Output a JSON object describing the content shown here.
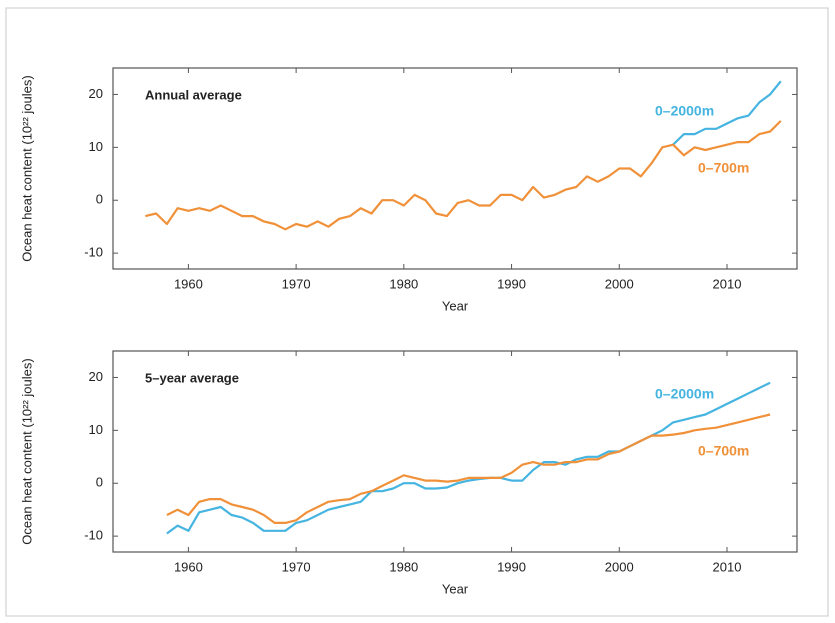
{
  "chart_data": [
    {
      "type": "line",
      "label": "Annual average",
      "xlabel": "Year",
      "ylabel": "Ocean heat content (10²² joules)",
      "x": [
        1956,
        1957,
        1958,
        1959,
        1960,
        1961,
        1962,
        1963,
        1964,
        1965,
        1966,
        1967,
        1968,
        1969,
        1970,
        1971,
        1972,
        1973,
        1974,
        1975,
        1976,
        1977,
        1978,
        1979,
        1980,
        1981,
        1982,
        1983,
        1984,
        1985,
        1986,
        1987,
        1988,
        1989,
        1990,
        1991,
        1992,
        1993,
        1994,
        1995,
        1996,
        1997,
        1998,
        1999,
        2000,
        2001,
        2002,
        2003,
        2004,
        2005,
        2006,
        2007,
        2008,
        2009,
        2010,
        2011,
        2012,
        2013,
        2014,
        2015
      ],
      "series": [
        {
          "name": "0–2000m",
          "color": "#45b4e0",
          "values": [
            null,
            null,
            null,
            null,
            null,
            null,
            null,
            null,
            null,
            null,
            null,
            null,
            null,
            null,
            null,
            null,
            null,
            null,
            null,
            null,
            null,
            null,
            null,
            null,
            null,
            null,
            null,
            null,
            null,
            null,
            null,
            null,
            null,
            null,
            null,
            null,
            null,
            null,
            null,
            null,
            null,
            null,
            null,
            null,
            null,
            null,
            null,
            null,
            null,
            10.5,
            12.5,
            12.5,
            13.5,
            13.5,
            14.5,
            15.5,
            16,
            18.5,
            20,
            22.5
          ]
        },
        {
          "name": "0–700m",
          "color": "#f0913a",
          "values": [
            -3,
            -2.5,
            -4.5,
            -1.5,
            -2,
            -1.5,
            -2,
            -1,
            -2,
            -3,
            -3,
            -4,
            -4.5,
            -5.5,
            -4.5,
            -5,
            -4,
            -5,
            -3.5,
            -3,
            -1.5,
            -2.5,
            0,
            0,
            -1,
            1,
            0,
            -2.5,
            -3,
            -0.5,
            0,
            -1,
            -1,
            1,
            1,
            0,
            2.5,
            0.5,
            1,
            2,
            2.5,
            4.5,
            3.5,
            4.5,
            6,
            6,
            4.5,
            7,
            10,
            10.5,
            8.5,
            10,
            9.5,
            10,
            10.5,
            11,
            11,
            12.5,
            13,
            15
          ]
        }
      ],
      "xlim": [
        1953,
        2016.5
      ],
      "xticks": [
        1960,
        1970,
        1980,
        1990,
        2000,
        2010
      ],
      "ylim": [
        -13,
        25
      ],
      "yticks": [
        -10,
        0,
        10,
        20
      ]
    },
    {
      "type": "line",
      "label": "5–year average",
      "xlabel": "Year",
      "ylabel": "Ocean heat content (10²² joules)",
      "x": [
        1958,
        1959,
        1960,
        1961,
        1962,
        1963,
        1964,
        1965,
        1966,
        1967,
        1968,
        1969,
        1970,
        1971,
        1972,
        1973,
        1974,
        1975,
        1976,
        1977,
        1978,
        1979,
        1980,
        1981,
        1982,
        1983,
        1984,
        1985,
        1986,
        1987,
        1988,
        1989,
        1990,
        1991,
        1992,
        1993,
        1994,
        1995,
        1996,
        1997,
        1998,
        1999,
        2000,
        2001,
        2002,
        2003,
        2004,
        2005,
        2006,
        2007,
        2008,
        2009,
        2010,
        2011,
        2012,
        2013,
        2014
      ],
      "series": [
        {
          "name": "0–2000m",
          "color": "#45b4e0",
          "values": [
            -9.5,
            -8,
            -9,
            -5.5,
            -5,
            -4.5,
            -6,
            -6.5,
            -7.5,
            -9,
            -9,
            -9,
            -7.5,
            -7,
            -6,
            -5,
            -4.5,
            -4,
            -3.5,
            -1.5,
            -1.5,
            -1,
            0,
            0,
            -1,
            -1,
            -0.8,
            0,
            0.5,
            0.8,
            1,
            1,
            0.5,
            0.5,
            2.5,
            4,
            4,
            3.5,
            4.5,
            5,
            5,
            6,
            6,
            7,
            8,
            9,
            10,
            11.5,
            12,
            12.5,
            13,
            14,
            15,
            16,
            17,
            18,
            19
          ]
        },
        {
          "name": "0–700m",
          "color": "#f0913a",
          "values": [
            -6,
            -5,
            -6,
            -3.5,
            -3,
            -3,
            -4,
            -4.5,
            -5,
            -6,
            -7.5,
            -7.5,
            -7,
            -5.5,
            -4.5,
            -3.5,
            -3.2,
            -3,
            -2,
            -1.5,
            -0.5,
            0.5,
            1.5,
            1,
            0.5,
            0.5,
            0.3,
            0.5,
            1,
            1,
            1,
            1,
            2,
            3.5,
            4,
            3.5,
            3.5,
            4,
            4,
            4.5,
            4.5,
            5.5,
            6,
            7,
            8,
            9,
            9,
            9.2,
            9.5,
            10,
            10.3,
            10.5,
            11,
            11.5,
            12,
            12.5,
            13
          ]
        }
      ],
      "xlim": [
        1953,
        2016.5
      ],
      "xticks": [
        1960,
        1970,
        1980,
        1990,
        2000,
        2010
      ],
      "ylim": [
        -13,
        25
      ],
      "yticks": [
        -10,
        0,
        10,
        20
      ]
    }
  ]
}
